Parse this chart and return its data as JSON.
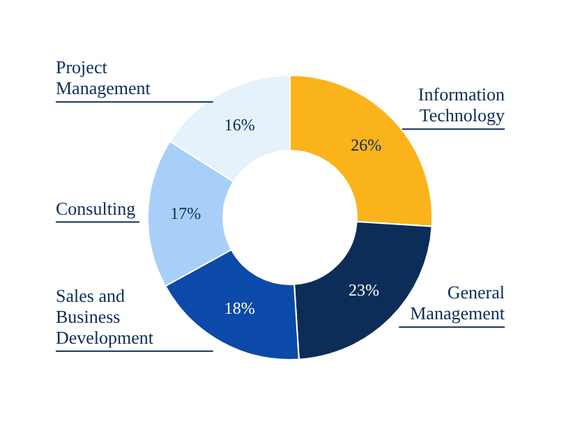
{
  "chart_data": {
    "type": "donut",
    "categories": [
      "Information Technology",
      "General Management",
      "Sales and Business Development",
      "Consulting",
      "Project Management"
    ],
    "values": [
      26,
      23,
      18,
      17,
      16
    ],
    "value_labels": [
      "26%",
      "23%",
      "18%",
      "17%",
      "16%"
    ],
    "colors": [
      "#fbb31b",
      "#0c2d57",
      "#0b4aa8",
      "#a8cff8",
      "#e5f2fc"
    ],
    "legend": false
  }
}
